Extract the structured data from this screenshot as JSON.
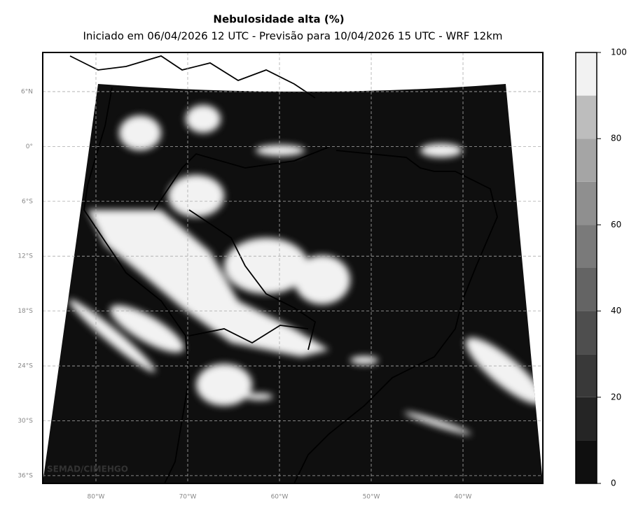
{
  "header": {
    "title": "Nebulosidade alta (%)",
    "subtitle": "Iniciado em 06/04/2026 12 UTC - Previsão para 10/04/2026 15 UTC - WRF 12km"
  },
  "map": {
    "latlim": [
      -36.85,
      10.28
    ],
    "lonlim": [
      -85.8,
      -31.3
    ],
    "lat_ticks": [
      {
        "value": 6,
        "label": "6°N"
      },
      {
        "value": 0,
        "label": "0°"
      },
      {
        "value": -6,
        "label": "6°S"
      },
      {
        "value": -12,
        "label": "12°S"
      },
      {
        "value": -18,
        "label": "18°S"
      },
      {
        "value": -24,
        "label": "24°S"
      },
      {
        "value": -30,
        "label": "30°S"
      },
      {
        "value": -36,
        "label": "36°S"
      }
    ],
    "lon_ticks": [
      {
        "value": -80,
        "label": "80°W"
      },
      {
        "value": -70,
        "label": "70°W"
      },
      {
        "value": -60,
        "label": "60°W"
      },
      {
        "value": -50,
        "label": "50°W"
      },
      {
        "value": -40,
        "label": "40°W"
      }
    ],
    "grid": true,
    "watermark": "SEMAD/CIMEHGO"
  },
  "colorbar": {
    "lim": [
      0,
      100
    ],
    "ticks": [
      0,
      20,
      40,
      60,
      80,
      100
    ],
    "bounds": [
      0,
      10,
      20,
      30,
      40,
      50,
      60,
      70,
      80,
      90,
      100
    ],
    "colors": [
      "#0f0f0f",
      "#252525",
      "#393939",
      "#4e4e4e",
      "#646464",
      "#7a7a7a",
      "#8f8f8f",
      "#a5a5a5",
      "#bdbdbd",
      "#d6d6d6"
    ],
    "top_color": "#f2f2f2"
  }
}
